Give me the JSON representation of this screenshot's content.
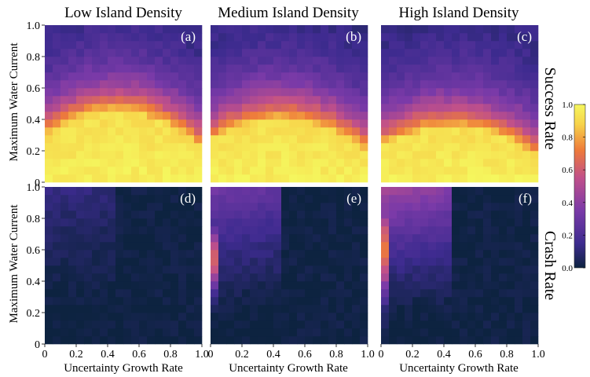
{
  "chart_data": {
    "type": "heatmap",
    "column_titles": [
      "Low Island Density",
      "Medium Island Density",
      "High Island Density"
    ],
    "row_titles": [
      "Success Rate",
      "Crash Rate"
    ],
    "xlabel": "Uncertainty Growth Rate",
    "ylabel": "Maximum Water Current",
    "xlim": [
      0,
      1
    ],
    "ylim": [
      0,
      1
    ],
    "x_ticks": [
      "0",
      "0.2",
      "0.4",
      "0.6",
      "0.8",
      "1.0"
    ],
    "y_ticks": [
      "0",
      "0.2",
      "0.4",
      "0.6",
      "0.8",
      "1.0"
    ],
    "grid_size": 20,
    "colormap": "plasma",
    "colorbar": {
      "range": [
        0,
        1
      ],
      "ticks": [
        "0.0",
        "0.2",
        "0.4",
        "0.6",
        "0.8",
        "1.0"
      ],
      "colors": [
        "#0d2340",
        "#3d2b8f",
        "#7a3aa8",
        "#c0508a",
        "#ee7a3a",
        "#f7d34a",
        "#f5f75e"
      ]
    },
    "panels": [
      {
        "label": "(a)",
        "metric": "success",
        "density": "low",
        "description": "yellow (~1.0) below a dome peaking near 0.45 current at 0.4-0.5 growth rate, fading to dark purple (~0.1) at high current"
      },
      {
        "label": "(b)",
        "metric": "success",
        "density": "medium",
        "description": "similar dome, slightly lower, transition near 0.35-0.45 current"
      },
      {
        "label": "(c)",
        "metric": "success",
        "density": "high",
        "description": "lower dome, transition near 0.3-0.4 current"
      },
      {
        "label": "(d)",
        "metric": "crash",
        "density": "low",
        "description": "near 0 everywhere; small values (~0.1) at high current for growth rate below 0.45"
      },
      {
        "label": "(e)",
        "metric": "crash",
        "density": "medium",
        "description": "moderate crash (~0.2-0.35) at high current for growth rate below 0.45, orange column at zero growth rate near 0.3-0.7 current"
      },
      {
        "label": "(f)",
        "metric": "crash",
        "density": "high",
        "description": "high crash (~0.3-0.5) at high current for growth rate below 0.45, orange column at zero growth rate near 0.3-0.9 current"
      }
    ]
  }
}
